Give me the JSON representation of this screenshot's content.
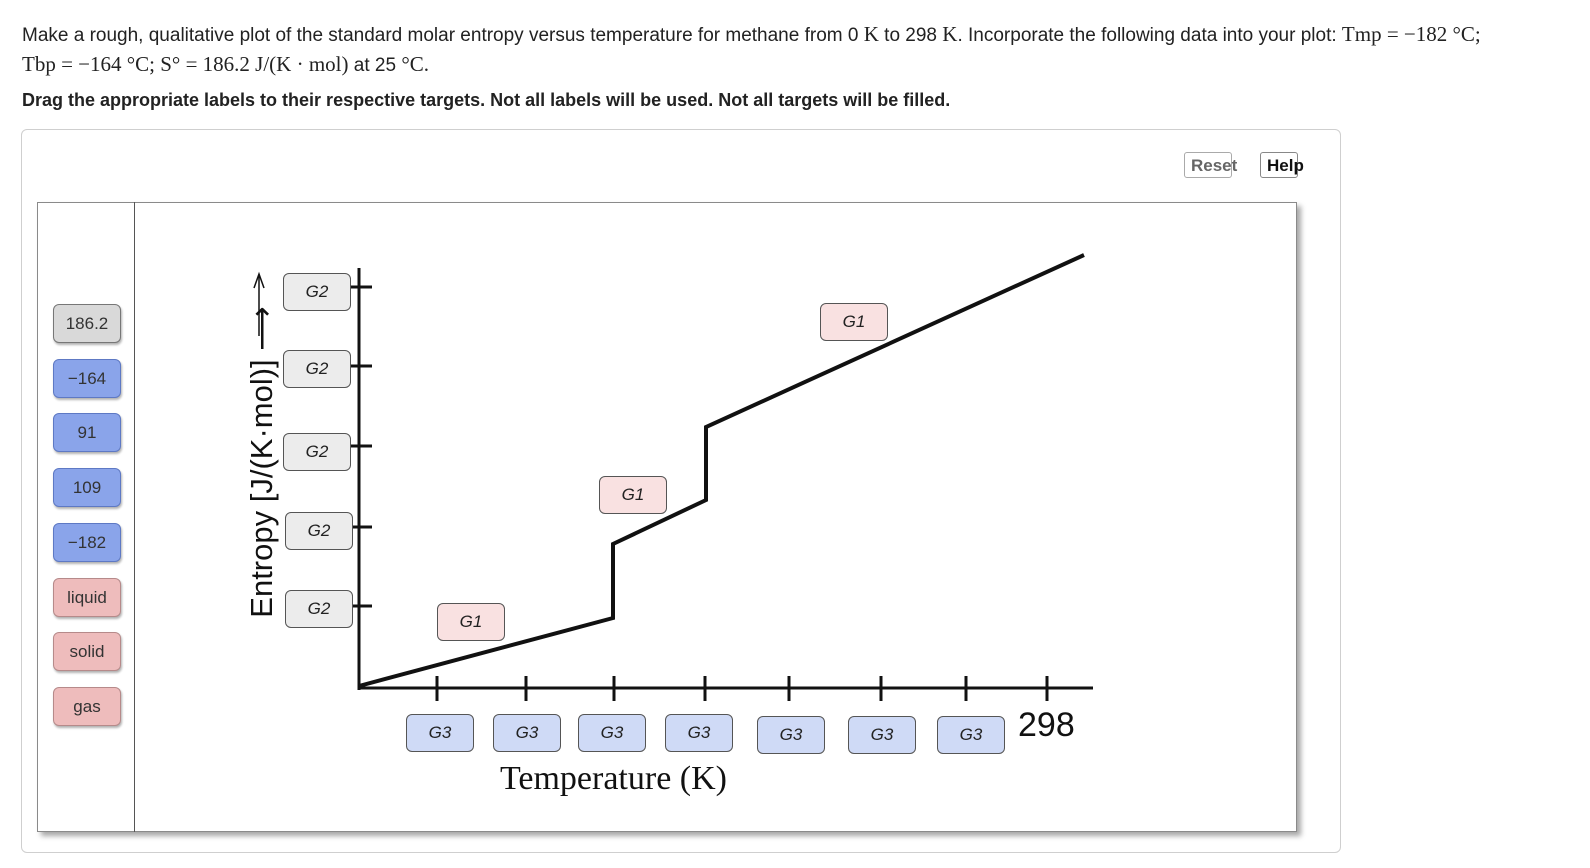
{
  "prompt": {
    "line1_text": "Make a rough, qualitative plot of the standard molar entropy versus temperature for methane from 0",
    "unit_K": "K",
    "to_text": "to 298",
    "incorporate_text": ". Incorporate the following data into your plot:",
    "tmp_expr": "Tmp = −182 °C;",
    "tbp_expr": "Tbp = −164 °C; S° = 186.2 J/(K · mol)",
    "at_text": "at 25",
    "at_unit": "°C."
  },
  "instruction": "Drag the appropriate labels to their respective targets. Not all labels will be used. Not all targets will be filled.",
  "buttons": {
    "reset": "Reset",
    "help": "Help"
  },
  "labels": [
    "186.2",
    "−164",
    "91",
    "109",
    "−182",
    "liquid",
    "solid",
    "gas"
  ],
  "targets": {
    "g1": "G1",
    "g2": "G2",
    "g3": "G3"
  },
  "axes": {
    "ylabel": "Entropy [J/(K·mol)] ⟶",
    "xlabel": "Temperature (K)",
    "x_end_tick": "298"
  },
  "colors": {
    "label_gray": "#d9d9d9",
    "label_blue": "#8aa4ea",
    "label_pink": "#eebcbc",
    "target_gray": "#ececec",
    "target_pink": "#f9e1e1",
    "target_blue": "#cfdaf6"
  }
}
